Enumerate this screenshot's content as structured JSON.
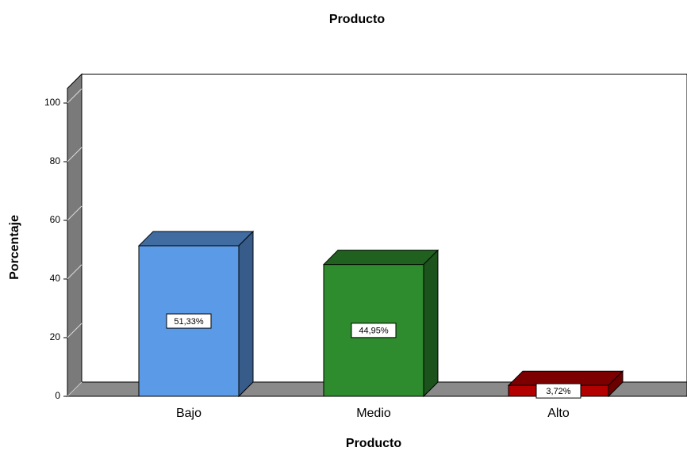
{
  "chart_data": {
    "type": "bar3d",
    "title": "Producto",
    "x_label": "Producto",
    "y_label": "Porcentaje",
    "categories": [
      "Bajo",
      "Medio",
      "Alto"
    ],
    "values": [
      51.33,
      44.95,
      3.72
    ],
    "value_labels": [
      "51,33%",
      "44,95%",
      "3,72%"
    ],
    "colors": [
      "#5b9ae6",
      "#2e8b2e",
      "#b30000"
    ],
    "ylim": [
      0,
      105
    ],
    "yticks": [
      0,
      20,
      40,
      60,
      80,
      100
    ]
  }
}
